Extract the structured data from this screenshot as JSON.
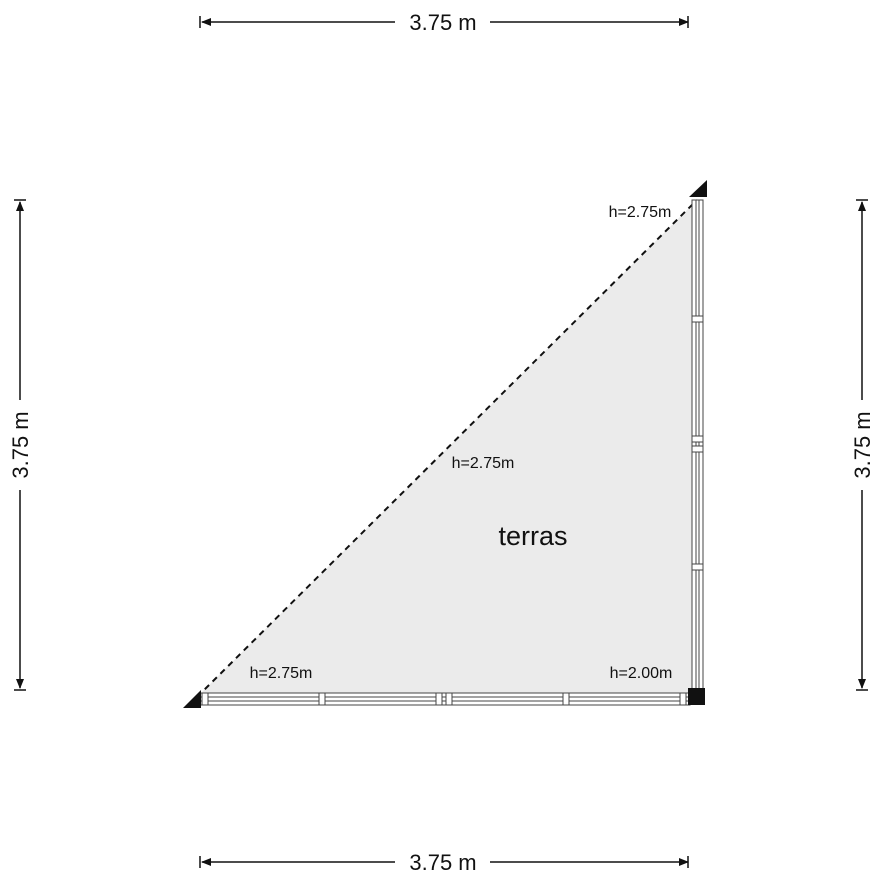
{
  "dimensions": {
    "top": "3.75 m",
    "bottom": "3.75 m",
    "left": "3.75 m",
    "right": "3.75 m"
  },
  "room": {
    "name": "terras"
  },
  "heights": [
    "h=2.75m",
    "h=2.75m",
    "h=2.75m",
    "h=2.00m"
  ]
}
